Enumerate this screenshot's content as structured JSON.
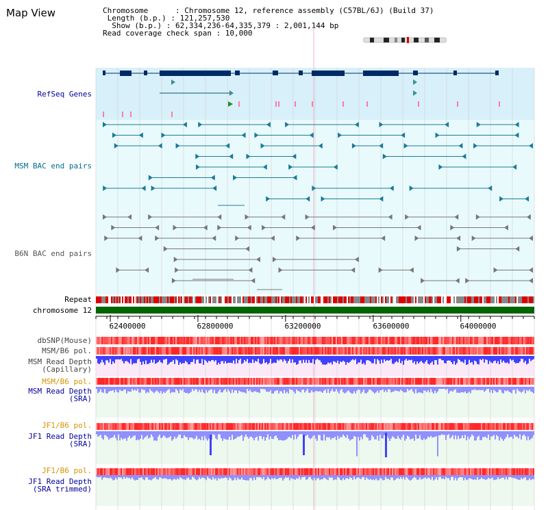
{
  "page": {
    "title": "Map View",
    "info_lines": [
      "Chromosome      : Chromosome 12, reference assembly (C57BL/6J) (Build 37)",
      " Length (b.p.) : 121,257,530",
      "  Show (b.p.) : 62,334,236-64,335,379 : 2,001,144 bp",
      "Read coverage check span : 10,000"
    ]
  },
  "tracks": {
    "refseq": {
      "label": "RefSeq Genes",
      "color": "#000099"
    },
    "msm_bac": {
      "label": "MSM BAC end pairs",
      "color": "#006b8f"
    },
    "b6n_bac": {
      "label": "B6N BAC end pairs",
      "color": "#555555"
    },
    "repeat": {
      "label": "Repeat",
      "color": "#000000"
    },
    "chrom": {
      "label": "chromosome 12",
      "color": "#000000"
    },
    "dbsnp": {
      "label": "dbSNP(Mouse)",
      "color": "#444444"
    },
    "msm_b6_pol_1": {
      "label": "MSM/B6 pol.",
      "color": "#444444"
    },
    "msm_read_depth_cap": {
      "label": "MSM Read Depth\n(Capillary)",
      "color": "#444444"
    },
    "msm_b6_pol_2": {
      "label": "MSM/B6 pol.",
      "color": "#d99100"
    },
    "msm_read_depth_sra": {
      "label": "MSM Read Depth\n(SRA)",
      "color": "#000099"
    },
    "jf1_b6_pol_1": {
      "label": "JF1/B6 pol.",
      "color": "#d99100"
    },
    "jf1_read_depth_sra": {
      "label": "JF1 Read Depth\n(SRA)",
      "color": "#000099"
    },
    "jf1_b6_pol_2": {
      "label": "JF1/B6 pol.",
      "color": "#d99100"
    },
    "jf1_read_depth_trim": {
      "label": "JF1 Read Depth\n(SRA trimmed)",
      "color": "#000099"
    }
  },
  "axis": {
    "ticks": [
      "62400000",
      "62800000",
      "63200000",
      "63600000",
      "64000000"
    ],
    "tick_values": [
      62400000,
      62800000,
      63200000,
      63600000,
      64000000
    ],
    "start": 62334236,
    "end": 64335379
  },
  "colors": {
    "refseq_bg": "#d8f0fa",
    "bac_bg": "#e9fafc",
    "feature_dark": "#002a66",
    "msm_feature": "#1a7a9a",
    "b6n_feature": "#777777",
    "repeat_red": "#e00000",
    "repeat_grey": "#888888",
    "chrom_green": "#006400",
    "pol_red": "#ff4444",
    "depth_blue": "#4040ff",
    "depth_light": "#9090ff",
    "cap_bg": "#fbe9f7",
    "sra_bg": "#edf8ee"
  }
}
